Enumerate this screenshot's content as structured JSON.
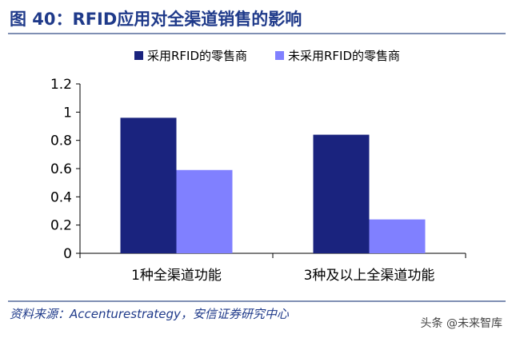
{
  "header": {
    "title": "图 40：RFID应用对全渠道销售的影响"
  },
  "footer": {
    "source": "资料来源：Accenturestrategy，安信证券研究中心",
    "watermark": "头条 @未来智库"
  },
  "colors": {
    "title": "#1f3a8a",
    "series_1": "#1a237e",
    "series_2": "#8080ff"
  },
  "chart_data": {
    "type": "bar",
    "categories": [
      "1种全渠道功能",
      "3种及以上全渠道功能"
    ],
    "series": [
      {
        "name": "采用RFID的零售商",
        "values": [
          0.96,
          0.84
        ]
      },
      {
        "name": "未采用RFID的零售商",
        "values": [
          0.59,
          0.24
        ]
      }
    ],
    "ylim": [
      0,
      1.2
    ],
    "yticks": [
      "0",
      "0.2",
      "0.4",
      "0.6",
      "0.8",
      "1",
      "1.2"
    ],
    "legend_position": "top",
    "grid": false
  }
}
